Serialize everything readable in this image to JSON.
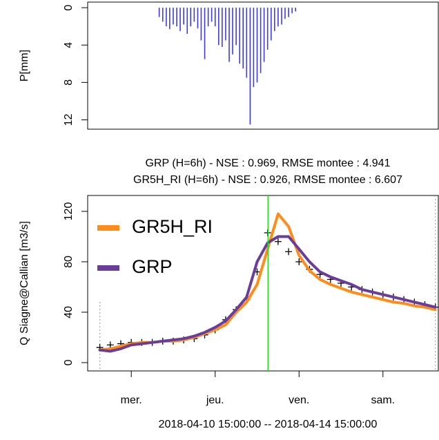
{
  "chart_data": [
    {
      "type": "bar",
      "ylabel": "P[mm]",
      "ylim": [
        13,
        -0.6
      ],
      "yticks": [
        0,
        4,
        8,
        12
      ],
      "xlim": [
        0.48,
        4.66
      ],
      "color": "#3a3ae8",
      "x": [
        1.333,
        1.375,
        1.417,
        1.458,
        1.5,
        1.542,
        1.583,
        1.625,
        1.667,
        1.708,
        1.75,
        1.792,
        1.833,
        1.875,
        1.917,
        1.958,
        2,
        2.042,
        2.083,
        2.125,
        2.167,
        2.208,
        2.25,
        2.292,
        2.333,
        2.375,
        2.417,
        2.458,
        2.5,
        2.542,
        2.583,
        2.625,
        2.667,
        2.708,
        2.75,
        2.792,
        2.833,
        2.875,
        2.917,
        2.958
      ],
      "values": [
        1.0,
        1.5,
        2.0,
        2.3,
        1.8,
        2.0,
        2.5,
        1.8,
        2.8,
        2.0,
        1.5,
        2.2,
        3.5,
        5.5,
        2.0,
        1.5,
        2.0,
        4.0,
        4.2,
        3.5,
        5.8,
        5.0,
        4.0,
        6.0,
        6.5,
        7.5,
        12.5,
        8.5,
        8.0,
        7.0,
        5.8,
        4.5,
        3.5,
        2.5,
        2.0,
        1.8,
        1.2,
        1.0,
        0.6,
        0.4
      ]
    },
    {
      "type": "line",
      "ylabel": "Q Siagne@Callian [m3/s]",
      "xlabel": "2018-04-10 15:00:00 -- 2018-04-14 15:00:00",
      "annotations": [
        {
          "text": "GRP (H=6h) - NSE  : 0.969, RMSE montee : 4.941",
          "color": "#6a3d9a"
        },
        {
          "text": "GR5H_RI (H=6h) - NSE  : 0.926, RMSE montee : 6.607",
          "color": "#ff8c1a"
        }
      ],
      "ylim": [
        -6.6,
        132.6
      ],
      "yticks": [
        0,
        40,
        80,
        120
      ],
      "xlim": [
        0.48,
        4.66
      ],
      "xticks": [
        {
          "value": 1,
          "label": "mer."
        },
        {
          "value": 2,
          "label": "jeu."
        },
        {
          "value": 3,
          "label": "ven."
        },
        {
          "value": 4,
          "label": "sam."
        }
      ],
      "vline": {
        "x": 2.63,
        "color": "#22dd22"
      },
      "window": [
        0.625,
        4.625
      ],
      "x": [
        0.625,
        0.75,
        0.875,
        1,
        1.125,
        1.25,
        1.375,
        1.5,
        1.625,
        1.75,
        1.875,
        2,
        2.125,
        2.25,
        2.375,
        2.5,
        2.625,
        2.75,
        2.875,
        3,
        3.125,
        3.25,
        3.375,
        3.5,
        3.625,
        3.75,
        3.875,
        4,
        4.125,
        4.25,
        4.375,
        4.5,
        4.625
      ],
      "legend": "top-left",
      "series": [
        {
          "color": "#000000",
          "marker": "+",
          "values": [
            12,
            14,
            15,
            16,
            16,
            16,
            17,
            17,
            18,
            19,
            22,
            26,
            34,
            42,
            50,
            72,
            103,
            96,
            88,
            80,
            74,
            70,
            66,
            63,
            60,
            58,
            56,
            54,
            52,
            50,
            48,
            46,
            44
          ]
        },
        {
          "name": "GR5H_RI",
          "color": "#ff8c1a",
          "values": [
            10,
            11,
            13,
            15,
            16,
            16,
            17,
            17,
            18,
            20,
            23,
            26,
            30,
            40,
            48,
            62,
            90,
            118,
            108,
            85,
            73,
            66,
            62,
            59,
            56,
            54,
            52,
            50,
            48,
            47,
            45,
            44,
            42
          ]
        },
        {
          "name": "GRP",
          "color": "#6a3d9a",
          "values": [
            10,
            9,
            11,
            14,
            15,
            16,
            17,
            18,
            19,
            21,
            24,
            28,
            33,
            42,
            52,
            80,
            95,
            100,
            100,
            90,
            80,
            72,
            68,
            65,
            62,
            58,
            56,
            54,
            52,
            50,
            48,
            46,
            44
          ]
        }
      ]
    }
  ]
}
